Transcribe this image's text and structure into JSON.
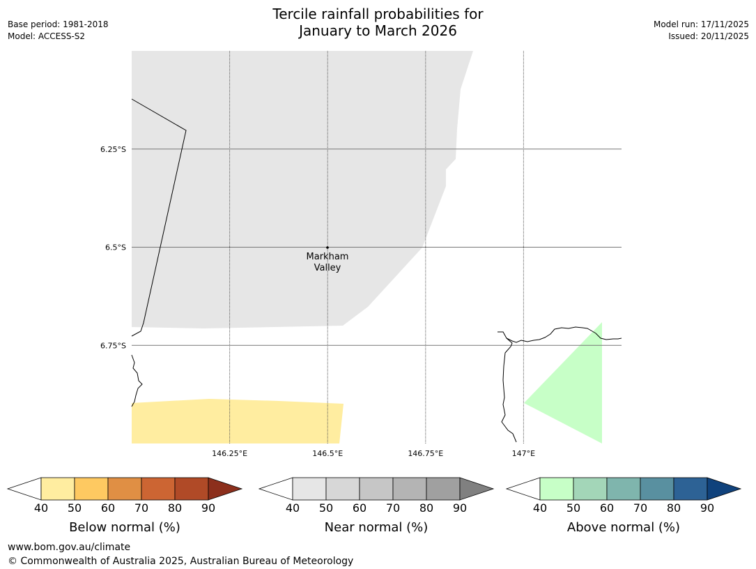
{
  "header": {
    "title_line1": "Tercile rainfall probabilities for",
    "title_line2": "January to March 2026",
    "base_period": "Base period: 1981-2018",
    "model": "Model: ACCESS-S2",
    "model_run": "Model run: 17/11/2025",
    "issued": "Issued: 20/11/2025"
  },
  "footer": {
    "url": "www.bom.gov.au/climate",
    "copyright": "© Commonwealth of Australia 2025, Australian Bureau of Meteorology"
  },
  "chart_data": {
    "type": "heatmap",
    "title": "Tercile rainfall probabilities for January to March 2026",
    "x_axis": {
      "ticks": [
        146.25,
        146.5,
        146.75,
        147.0
      ],
      "tick_labels": [
        "146.25°E",
        "146.5°E",
        "146.75°E",
        "147°E"
      ],
      "range": [
        146.0,
        147.25
      ]
    },
    "y_axis": {
      "ticks": [
        -6.25,
        -6.5,
        -6.75
      ],
      "tick_labels": [
        "6.25°S",
        "6.5°S",
        "6.75°S"
      ],
      "range": [
        -6.0,
        -7.0
      ]
    },
    "grid": true,
    "places": [
      {
        "name_line1": "Markham",
        "name_line2": "Valley",
        "lon": 146.5,
        "lat": -6.5
      }
    ],
    "regions": [
      {
        "category": "Near normal",
        "bin": "40-50",
        "color": "#e6e6e6"
      },
      {
        "category": "Below normal",
        "bin": "40-50",
        "color": "#ffeda0"
      },
      {
        "category": "Above normal",
        "bin": "40-50",
        "color": "#c7ffc7"
      }
    ],
    "legends": [
      {
        "title": "Below normal (%)",
        "ticks": [
          "40",
          "50",
          "60",
          "70",
          "80",
          "90"
        ],
        "colors": [
          "#ffeda0",
          "#fec961",
          "#e08f44",
          "#cc6533",
          "#b04a27"
        ],
        "extend_low": "#ffffff",
        "extend_high": "#8c2f1c"
      },
      {
        "title": "Near normal (%)",
        "ticks": [
          "40",
          "50",
          "60",
          "70",
          "80",
          "90"
        ],
        "colors": [
          "#e6e6e6",
          "#d7d7d7",
          "#c6c6c6",
          "#b4b4b4",
          "#a0a0a0"
        ],
        "extend_low": "#ffffff",
        "extend_high": "#808080"
      },
      {
        "title": "Above normal (%)",
        "ticks": [
          "40",
          "50",
          "60",
          "70",
          "80",
          "90"
        ],
        "colors": [
          "#c7ffc7",
          "#a3d6b8",
          "#7fb5ad",
          "#5990a0",
          "#2d6295"
        ],
        "extend_low": "#ffffff",
        "extend_high": "#10427c"
      }
    ]
  }
}
